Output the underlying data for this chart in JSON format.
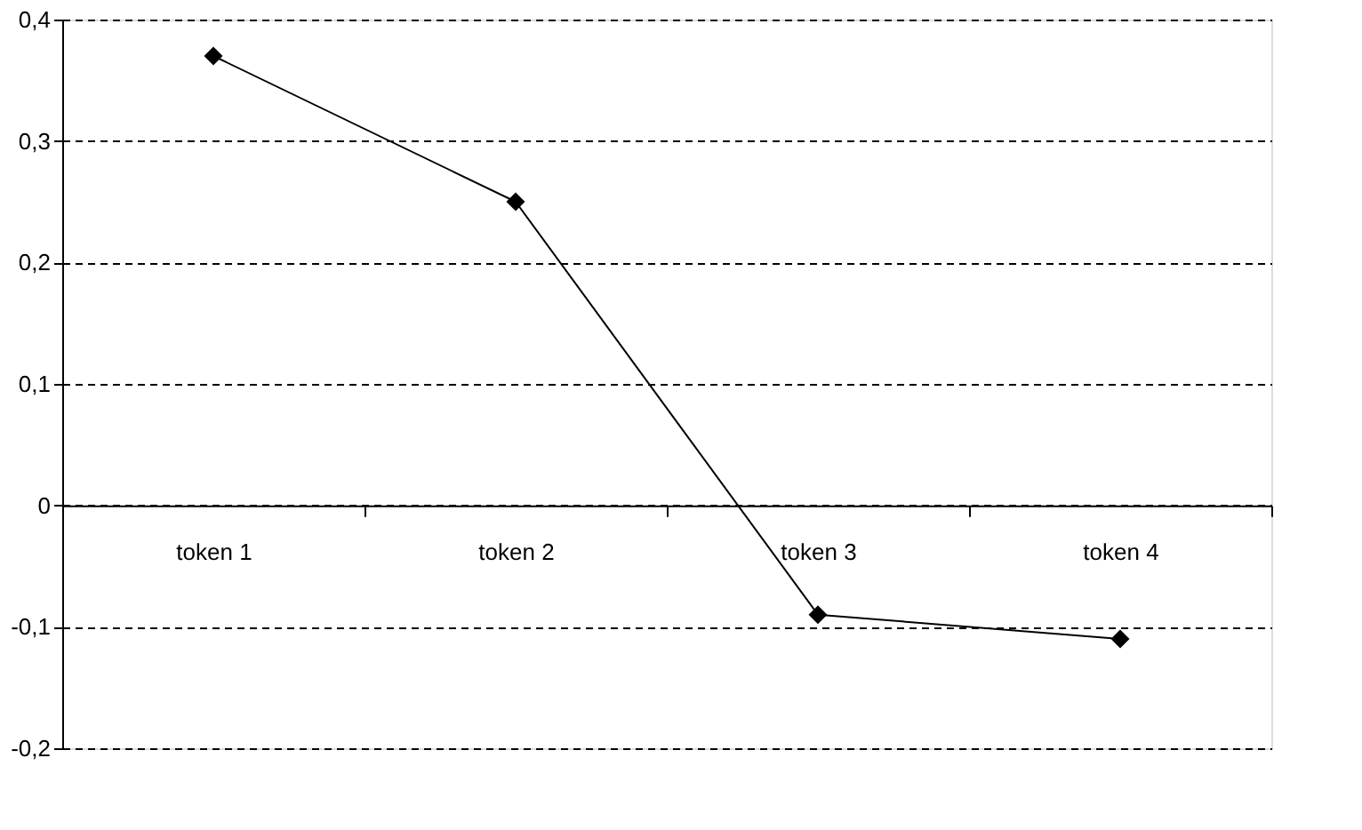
{
  "chart_data": {
    "type": "line",
    "categories": [
      "token 1",
      "token 2",
      "token 3",
      "token 4"
    ],
    "series": [
      {
        "color": "#000000",
        "values": [
          0.37,
          0.25,
          -0.09,
          -0.11
        ]
      }
    ],
    "ylim": [
      -0.2,
      0.4
    ],
    "yticks": [
      {
        "value": -0.2,
        "label": "-0,2"
      },
      {
        "value": -0.1,
        "label": "-0,1"
      },
      {
        "value": 0,
        "label": "0"
      },
      {
        "value": 0.1,
        "label": "0,1"
      },
      {
        "value": 0.2,
        "label": "0,2"
      },
      {
        "value": 0.3,
        "label": "0,3"
      },
      {
        "value": 0.4,
        "label": "0,4"
      }
    ],
    "grid": "y",
    "marker": "diamond",
    "line_style": "solid"
  }
}
